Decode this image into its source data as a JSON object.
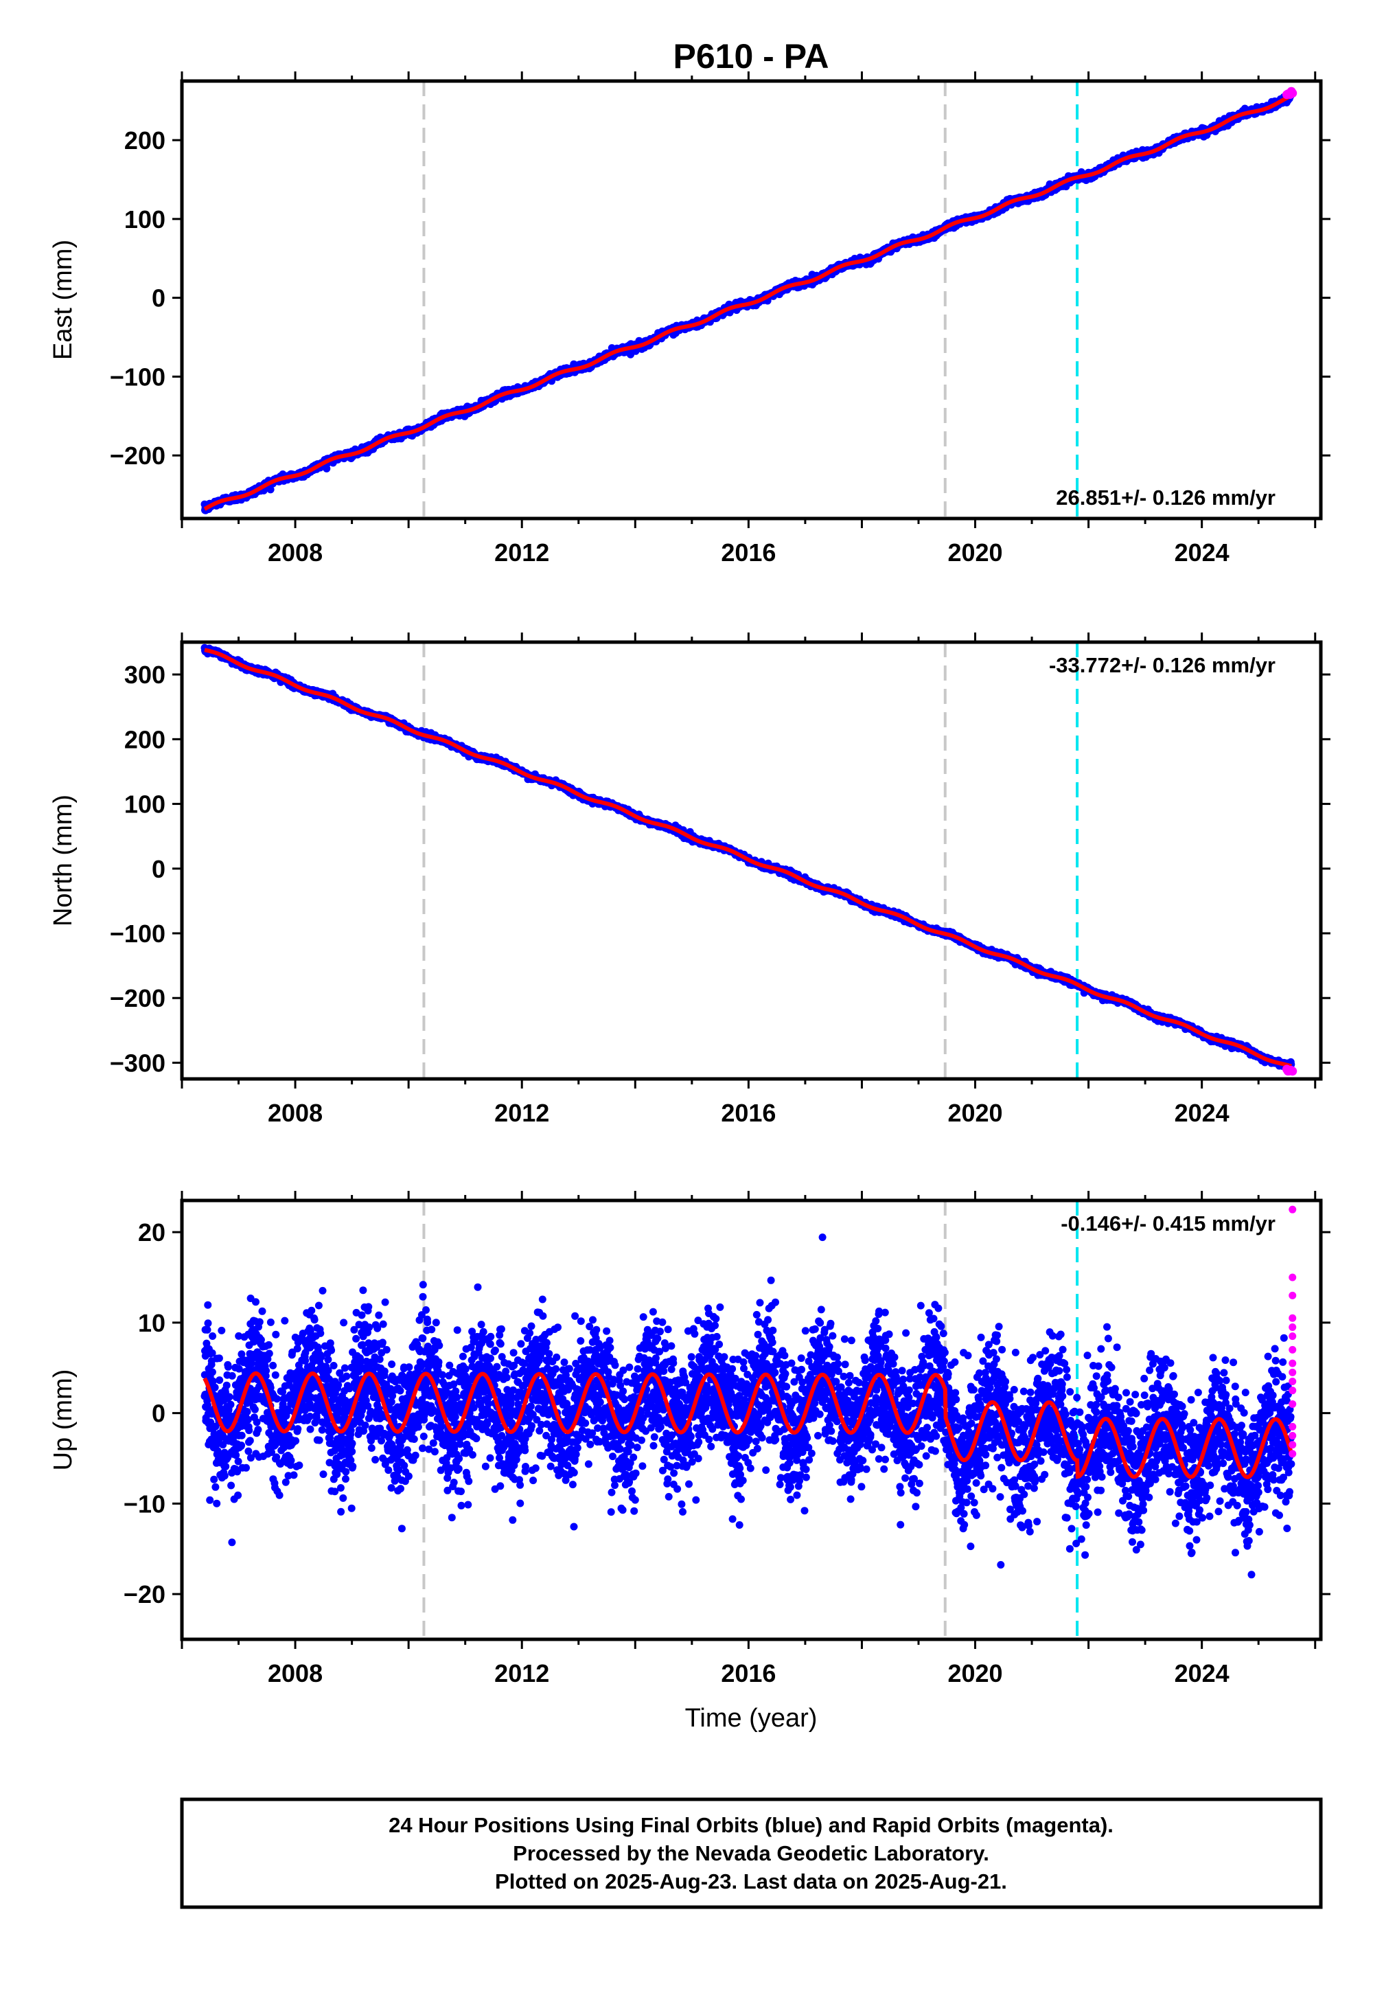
{
  "title": "P610 - PA",
  "colors": {
    "final_orbits": "#0000ff",
    "rapid_orbits": "#ff00ff",
    "model": "#ff0000",
    "equipment_change": "#c8c8c8",
    "earthquake": "#00e6f0"
  },
  "vertical_lines": {
    "gray": [
      2010.27,
      2019.47
    ],
    "cyan": [
      2021.8
    ]
  },
  "x_ticks": [
    "2008",
    "2012",
    "2016",
    "2020",
    "2024"
  ],
  "xlabel": "Time (year)",
  "footer": {
    "line1": "24 Hour Positions Using Final Orbits (blue) and Rapid Orbits (magenta).",
    "line2": "Processed by the Nevada Geodetic Laboratory.",
    "line3": "Plotted on 2025-Aug-23. Last data on 2025-Aug-21."
  },
  "chart_data": [
    {
      "type": "scatter",
      "component": "east",
      "ylabel": "East (mm)",
      "rate_text": "26.851+/- 0.126 mm/yr",
      "rate_position": "bottom-right",
      "xlim": [
        2006.0,
        2026.1
      ],
      "ylim": [
        -280,
        275
      ],
      "y_ticks": [
        200,
        100,
        0,
        -100,
        -200
      ],
      "y_tick_labels": [
        "200",
        "100",
        "0",
        "−100",
        "−200"
      ],
      "start": {
        "x": 2006.4,
        "y": -268
      },
      "end": {
        "x": 2025.6,
        "y": 255
      },
      "rapid_end_y": 260
    },
    {
      "type": "scatter",
      "component": "north",
      "ylabel": "North (mm)",
      "rate_text": "-33.772+/- 0.126 mm/yr",
      "rate_position": "top-right",
      "xlim": [
        2006.0,
        2026.1
      ],
      "ylim": [
        -325,
        350
      ],
      "y_ticks": [
        300,
        200,
        100,
        0,
        -100,
        -200,
        -300
      ],
      "y_tick_labels": [
        "300",
        "200",
        "100",
        "0",
        "−100",
        "−200",
        "−300"
      ],
      "start": {
        "x": 2006.4,
        "y": 338
      },
      "end": {
        "x": 2025.6,
        "y": -308
      },
      "rapid_end_y": -311
    },
    {
      "type": "scatter",
      "component": "up",
      "ylabel": "Up (mm)",
      "rate_text": "-0.146+/- 0.415 mm/yr",
      "rate_position": "top-right",
      "xlim": [
        2006.0,
        2026.1
      ],
      "ylim": [
        -25,
        23.5
      ],
      "y_ticks": [
        20,
        10,
        0,
        -10,
        -20
      ],
      "y_tick_labels": [
        "20",
        "10",
        "0",
        "−10",
        "−20"
      ],
      "seasonal_amplitude_mm": 3.2,
      "seasonal_phase_year": 2006.4,
      "offsets": [
        {
          "x": 2006.0,
          "y": 1.2
        },
        {
          "x": 2019.47,
          "y": -1.8
        },
        {
          "x": 2021.8,
          "y": -3.6
        }
      ],
      "rapid_points_x": 2025.6,
      "rapid_points_y": [
        22.5,
        15,
        13,
        10.5,
        9.5,
        8.5,
        7,
        5.5,
        4.5,
        3.5,
        2.5,
        1,
        -1.5,
        -2.5,
        -3.5,
        -4.5
      ]
    }
  ]
}
